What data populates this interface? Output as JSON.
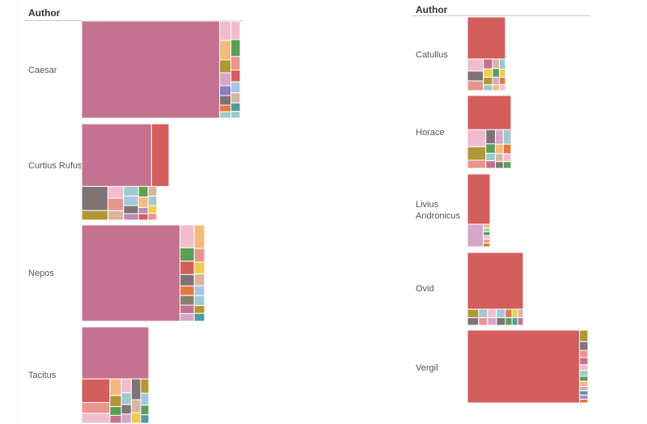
{
  "header": {
    "left_title": "Author",
    "right_title": "Author"
  },
  "palette": [
    "#c4728f",
    "#d45d5d",
    "#f2bccf",
    "#f4b97c",
    "#5b9e55",
    "#7f7375",
    "#b29737",
    "#e8958e",
    "#9fc9cc",
    "#d6a5c8",
    "#f0cb4c",
    "#a7c6e0",
    "#d8b59e",
    "#e07a3f",
    "#4f9aa3",
    "#b98bb8"
  ],
  "chart_data": [
    {
      "type": "treemap",
      "group_label": "Author",
      "rows": [
        {
          "name": "Caesar",
          "main": 88,
          "mainColor": "#c4728f",
          "cols": [
            {
              "w": 0.55,
              "items": [
                {
                  "v": 3,
                  "c": "#f2bccf"
                },
                {
                  "v": 3,
                  "c": "#f4b97c"
                },
                {
                  "v": 2,
                  "c": "#b29737"
                },
                {
                  "v": 2,
                  "c": "#d6a5c8"
                },
                {
                  "v": 1.5,
                  "c": "#8e7ec2"
                },
                {
                  "v": 1.5,
                  "c": "#7f7375"
                },
                {
                  "v": 1,
                  "c": "#e07a3f"
                },
                {
                  "v": 1,
                  "c": "#9fc9cc"
                }
              ]
            },
            {
              "w": 0.45,
              "items": [
                {
                  "v": 2.2,
                  "c": "#f2bccf"
                },
                {
                  "v": 2,
                  "c": "#5b9e55"
                },
                {
                  "v": 1.6,
                  "c": "#e8958e"
                },
                {
                  "v": 1.4,
                  "c": "#d45d5d"
                },
                {
                  "v": 1.3,
                  "c": "#a7c6e0"
                },
                {
                  "v": 1.2,
                  "c": "#d8b59e"
                },
                {
                  "v": 1,
                  "c": "#4f9aa3"
                },
                {
                  "v": 0.8,
                  "c": "#9fc9cc"
                }
              ]
            }
          ]
        },
        {
          "name": "Curtius Rufus",
          "main": 52,
          "mainColor": "#c4728f",
          "second": 15,
          "secondColor": "#d45d5d",
          "cols": [
            {
              "w": 0.3,
              "items": [
                {
                  "v": 4,
                  "c": "#7f7375"
                },
                {
                  "v": 1.6,
                  "c": "#b29737"
                }
              ]
            },
            {
              "w": 0.18,
              "items": [
                {
                  "v": 1.5,
                  "c": "#f2bccf"
                },
                {
                  "v": 1.6,
                  "c": "#e8958e"
                },
                {
                  "v": 1.2,
                  "c": "#d8b59e"
                }
              ]
            },
            {
              "w": 0.17,
              "items": [
                {
                  "v": 1.2,
                  "c": "#9fc9cc"
                },
                {
                  "v": 1.2,
                  "c": "#a7c6e0"
                },
                {
                  "v": 1,
                  "c": "#7f7375"
                },
                {
                  "v": 0.8,
                  "c": "#b98bb8"
                }
              ]
            },
            {
              "w": 0.11,
              "items": [
                {
                  "v": 1,
                  "c": "#5b9e55"
                },
                {
                  "v": 1,
                  "c": "#f4b97c"
                },
                {
                  "v": 0.6,
                  "c": "#b98bb8"
                },
                {
                  "v": 0.6,
                  "c": "#d45d5d"
                }
              ]
            },
            {
              "w": 0.1,
              "items": [
                {
                  "v": 1,
                  "c": "#d8b59e"
                },
                {
                  "v": 1,
                  "c": "#9fc9cc"
                },
                {
                  "v": 0.8,
                  "c": "#f0cb4c"
                },
                {
                  "v": 0.7,
                  "c": "#e8958e"
                }
              ]
            }
          ]
        },
        {
          "name": "Nepos",
          "main": 86,
          "mainColor": "#c4728f",
          "cols": [
            {
              "w": 0.58,
              "items": [
                {
                  "v": 2.4,
                  "c": "#f2bccf"
                },
                {
                  "v": 1.4,
                  "c": "#5b9e55"
                },
                {
                  "v": 1.4,
                  "c": "#d45d5d"
                },
                {
                  "v": 1.2,
                  "c": "#7f7375"
                },
                {
                  "v": 1,
                  "c": "#e07a3f"
                },
                {
                  "v": 1,
                  "c": "#8a7d6e"
                },
                {
                  "v": 0.9,
                  "c": "#c4728f"
                },
                {
                  "v": 0.8,
                  "c": "#d6a5c8"
                }
              ]
            },
            {
              "w": 0.42,
              "items": [
                {
                  "v": 2.4,
                  "c": "#f4b97c"
                },
                {
                  "v": 1.4,
                  "c": "#e8958e"
                },
                {
                  "v": 1.2,
                  "c": "#f0cb4c"
                },
                {
                  "v": 1.2,
                  "c": "#d8b59e"
                },
                {
                  "v": 1,
                  "c": "#a7c6e0"
                },
                {
                  "v": 1,
                  "c": "#9fc9cc"
                },
                {
                  "v": 0.8,
                  "c": "#b29737"
                },
                {
                  "v": 0.8,
                  "c": "#4f9aa3"
                }
              ]
            }
          ]
        },
        {
          "name": "Tacitus",
          "main": 62,
          "mainColor": "#c4728f",
          "cols": [
            {
              "w": 0.42,
              "items": [
                {
                  "v": 2.4,
                  "c": "#d45d5d"
                },
                {
                  "v": 1.1,
                  "c": "#e8958e"
                },
                {
                  "v": 1,
                  "c": "#f2bccf"
                }
              ]
            },
            {
              "w": 0.17,
              "items": [
                {
                  "v": 1.5,
                  "c": "#f4b97c"
                },
                {
                  "v": 1,
                  "c": "#b29737"
                },
                {
                  "v": 0.8,
                  "c": "#5b9e55"
                },
                {
                  "v": 0.7,
                  "c": "#c4728f"
                }
              ]
            },
            {
              "w": 0.15,
              "items": [
                {
                  "v": 1.2,
                  "c": "#f2bccf"
                },
                {
                  "v": 1,
                  "c": "#9fc9cc"
                },
                {
                  "v": 0.8,
                  "c": "#7f7375"
                },
                {
                  "v": 0.8,
                  "c": "#d6a5c8"
                }
              ]
            },
            {
              "w": 0.14,
              "items": [
                {
                  "v": 1.6,
                  "c": "#7f7375"
                },
                {
                  "v": 1,
                  "c": "#d8b59e"
                },
                {
                  "v": 0.8,
                  "c": "#f0cb4c"
                }
              ]
            },
            {
              "w": 0.12,
              "items": [
                {
                  "v": 1.2,
                  "c": "#b29737"
                },
                {
                  "v": 1,
                  "c": "#a7c6e0"
                },
                {
                  "v": 0.8,
                  "c": "#5b9e55"
                },
                {
                  "v": 0.7,
                  "c": "#4f9aa3"
                }
              ]
            }
          ]
        }
      ]
    },
    {
      "type": "treemap",
      "group_label": "Author",
      "rows": [
        {
          "name": "Catullus",
          "main": 55,
          "mainColor": "#d45d5d",
          "cols": [
            {
              "w": 0.42,
              "items": [
                {
                  "v": 1.5,
                  "c": "#f2bccf"
                },
                {
                  "v": 1.2,
                  "c": "#7f7375"
                },
                {
                  "v": 1.2,
                  "c": "#e8958e"
                }
              ]
            },
            {
              "w": 0.24,
              "items": [
                {
                  "v": 1.2,
                  "c": "#c4728f"
                },
                {
                  "v": 1,
                  "c": "#f0cb4c"
                },
                {
                  "v": 0.9,
                  "c": "#b29737"
                },
                {
                  "v": 0.7,
                  "c": "#9fc9cc"
                }
              ]
            },
            {
              "w": 0.18,
              "items": [
                {
                  "v": 1,
                  "c": "#d8b59e"
                },
                {
                  "v": 0.9,
                  "c": "#5b9e55"
                },
                {
                  "v": 0.8,
                  "c": "#d6a5c8"
                },
                {
                  "v": 0.6,
                  "c": "#f4b97c"
                }
              ]
            },
            {
              "w": 0.16,
              "items": [
                {
                  "v": 1,
                  "c": "#9fc9cc"
                },
                {
                  "v": 0.8,
                  "c": "#f0cb4c"
                },
                {
                  "v": 0.7,
                  "c": "#e07a3f"
                },
                {
                  "v": 0.6,
                  "c": "#f2bccf"
                }
              ]
            }
          ]
        },
        {
          "name": "Horace",
          "main": 47,
          "mainColor": "#d45d5d",
          "cols": [
            {
              "w": 0.42,
              "items": [
                {
                  "v": 1.9,
                  "c": "#f2bccf"
                },
                {
                  "v": 1.5,
                  "c": "#b29737"
                },
                {
                  "v": 0.9,
                  "c": "#e8958e"
                }
              ]
            },
            {
              "w": 0.22,
              "items": [
                {
                  "v": 1.5,
                  "c": "#7f7375"
                },
                {
                  "v": 1,
                  "c": "#5b9e55"
                },
                {
                  "v": 0.8,
                  "c": "#9fc9cc"
                },
                {
                  "v": 0.8,
                  "c": "#c4728f"
                }
              ]
            },
            {
              "w": 0.18,
              "items": [
                {
                  "v": 1.5,
                  "c": "#d6a5c8"
                },
                {
                  "v": 1,
                  "c": "#f4b97c"
                },
                {
                  "v": 0.8,
                  "c": "#d8b59e"
                },
                {
                  "v": 0.7,
                  "c": "#7f7375"
                }
              ]
            },
            {
              "w": 0.18,
              "items": [
                {
                  "v": 1.5,
                  "c": "#9fc9cc"
                },
                {
                  "v": 1,
                  "c": "#e07a3f"
                },
                {
                  "v": 0.8,
                  "c": "#f2bccf"
                },
                {
                  "v": 0.7,
                  "c": "#5b9e55"
                }
              ]
            }
          ]
        },
        {
          "name": "Livius\nAndronicus",
          "main": 63,
          "mainColor": "#d45d5d",
          "cols": [
            {
              "w": 0.7,
              "items": [
                {
                  "v": 1,
                  "c": "#d6a5c8"
                }
              ]
            },
            {
              "w": 0.3,
              "items": [
                {
                  "v": 1,
                  "c": "#f4b97c"
                },
                {
                  "v": 1,
                  "c": "#9fc9cc"
                },
                {
                  "v": 1,
                  "c": "#5b9e55"
                },
                {
                  "v": 1,
                  "c": "#f2bccf"
                },
                {
                  "v": 1,
                  "c": "#e8958e"
                },
                {
                  "v": 1,
                  "c": "#b29737"
                }
              ]
            }
          ]
        },
        {
          "name": "Ovid",
          "main": 79,
          "mainColor": "#d45d5d",
          "cols": [
            {
              "w": 0.2,
              "items": [
                {
                  "v": 1.1,
                  "c": "#b29737"
                },
                {
                  "v": 1,
                  "c": "#7f7375"
                }
              ]
            },
            {
              "w": 0.16,
              "items": [
                {
                  "v": 1.1,
                  "c": "#9fc9cc"
                },
                {
                  "v": 1,
                  "c": "#e8958e"
                }
              ]
            },
            {
              "w": 0.16,
              "items": [
                {
                  "v": 1.1,
                  "c": "#f2bccf"
                },
                {
                  "v": 1,
                  "c": "#d6a5c8"
                }
              ]
            },
            {
              "w": 0.16,
              "items": [
                {
                  "v": 1.1,
                  "c": "#a7c6e0"
                },
                {
                  "v": 1,
                  "c": "#7f7375"
                }
              ]
            },
            {
              "w": 0.12,
              "items": [
                {
                  "v": 1.1,
                  "c": "#e07a3f"
                },
                {
                  "v": 1,
                  "c": "#5b9e55"
                }
              ]
            },
            {
              "w": 0.1,
              "items": [
                {
                  "v": 1.1,
                  "c": "#f0cb4c"
                },
                {
                  "v": 1,
                  "c": "#4f9aa3"
                }
              ]
            },
            {
              "w": 0.1,
              "items": [
                {
                  "v": 1.1,
                  "c": "#d8b59e"
                },
                {
                  "v": 1,
                  "c": "#c4728f"
                }
              ]
            }
          ]
        },
        {
          "name": "Vergil",
          "main": 93,
          "mainColor": "#d45d5d",
          "cols": [
            {
              "w": 1,
              "items": [
                {
                  "v": 1.6,
                  "c": "#b29737"
                },
                {
                  "v": 1.2,
                  "c": "#7f7375"
                },
                {
                  "v": 1,
                  "c": "#e8958e"
                },
                {
                  "v": 1,
                  "c": "#c4728f"
                },
                {
                  "v": 0.8,
                  "c": "#f2bccf"
                },
                {
                  "v": 0.8,
                  "c": "#9fc9cc"
                },
                {
                  "v": 0.7,
                  "c": "#5b9e55"
                },
                {
                  "v": 0.7,
                  "c": "#f4b97c"
                },
                {
                  "v": 0.6,
                  "c": "#d6a5c8"
                },
                {
                  "v": 0.6,
                  "c": "#4f9aa3"
                },
                {
                  "v": 0.6,
                  "c": "#b98bb8"
                },
                {
                  "v": 0.5,
                  "c": "#e07a3f"
                }
              ]
            }
          ]
        }
      ]
    }
  ]
}
